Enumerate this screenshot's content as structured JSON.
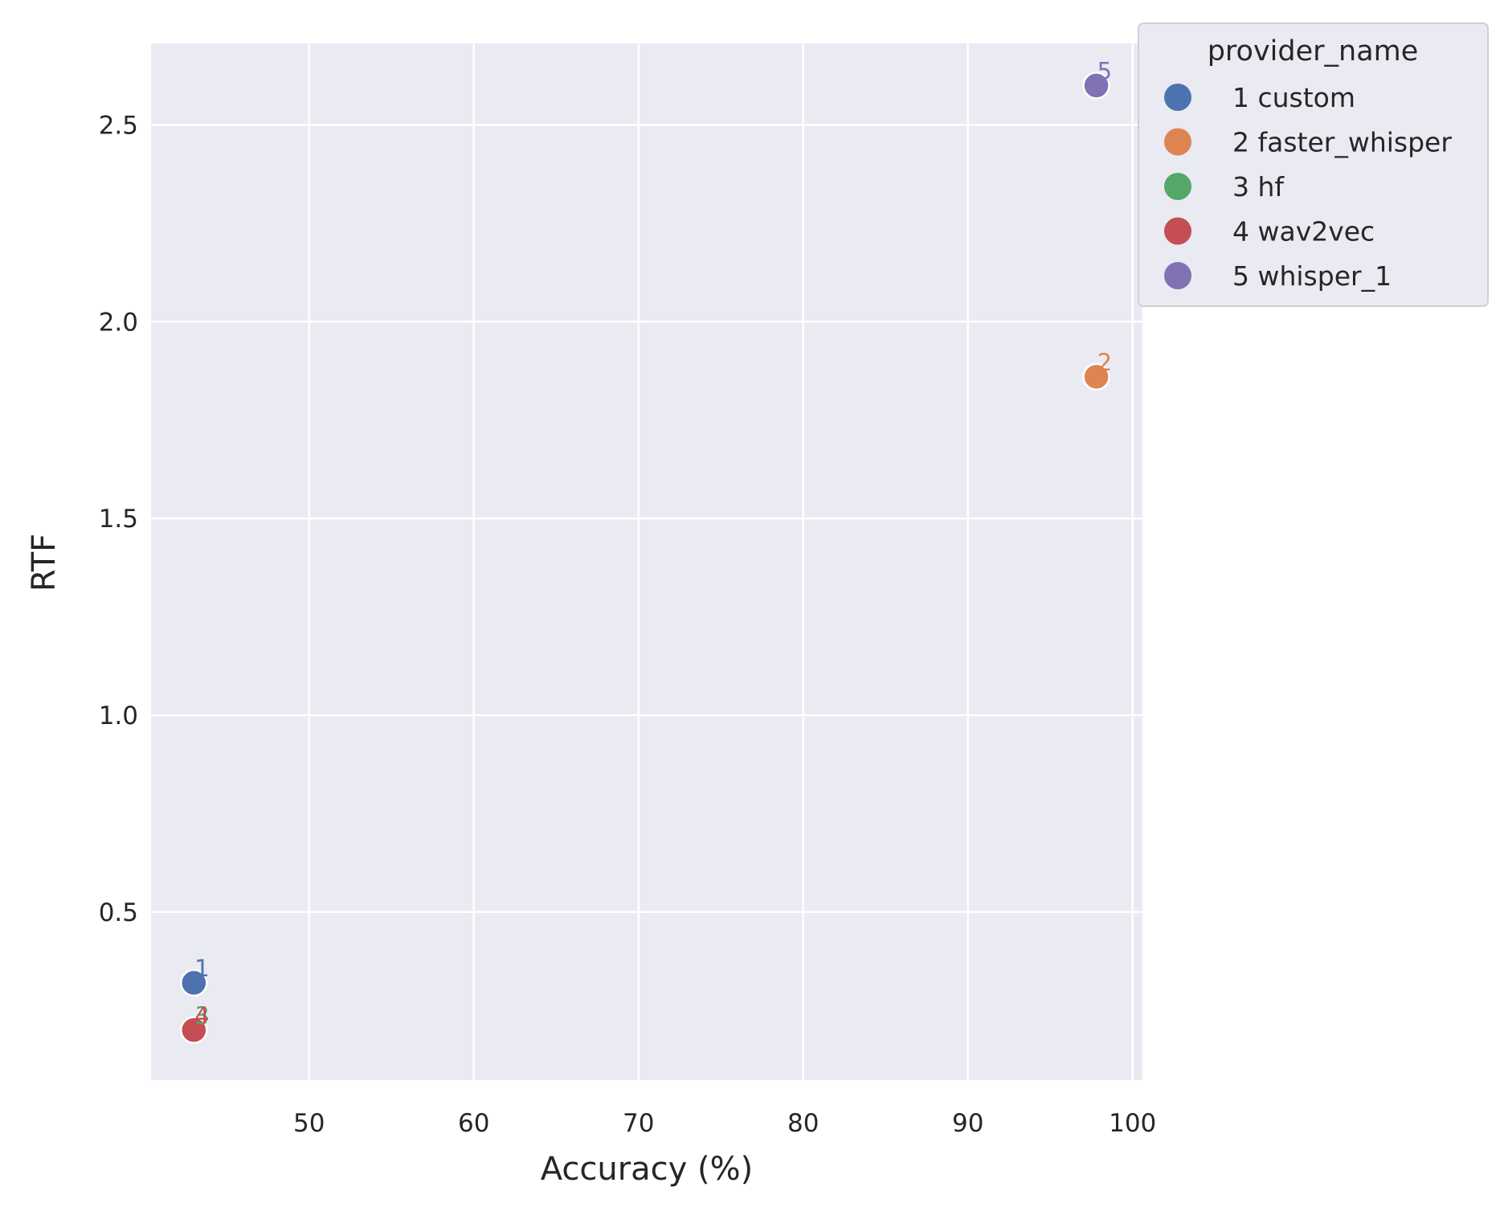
{
  "chart_data": {
    "type": "scatter",
    "title": "",
    "xlabel": "Accuracy (%)",
    "ylabel": "RTF",
    "xlim": [
      40.4,
      100.6
    ],
    "ylim": [
      0.073,
      2.707
    ],
    "xticks": [
      "50",
      "60",
      "70",
      "80",
      "90",
      "100"
    ],
    "yticks": [
      "0.5",
      "1.0",
      "1.5",
      "2.0",
      "2.5"
    ],
    "grid": true,
    "legend": {
      "title": "provider_name",
      "placement": "top-right, outside plot",
      "entries": [
        "1 custom",
        "2 faster_whisper",
        "3 hf",
        "4 wav2vec",
        "5 whisper_1"
      ]
    },
    "series": [
      {
        "name": "1 custom",
        "color": "#4c72b0",
        "points": [
          {
            "x": 43.0,
            "y": 0.32,
            "label": "1"
          }
        ]
      },
      {
        "name": "2 faster_whisper",
        "color": "#dd8452",
        "points": [
          {
            "x": 97.8,
            "y": 1.86,
            "label": "2"
          }
        ]
      },
      {
        "name": "3 hf",
        "color": "#55a868",
        "points": [
          {
            "x": 43.0,
            "y": 0.2,
            "label": "3"
          }
        ]
      },
      {
        "name": "4 wav2vec",
        "color": "#c44e52",
        "points": [
          {
            "x": 43.0,
            "y": 0.2,
            "label": "4"
          }
        ]
      },
      {
        "name": "5 whisper_1",
        "color": "#8172b3",
        "points": [
          {
            "x": 97.8,
            "y": 2.6,
            "label": "5"
          }
        ]
      }
    ],
    "style": {
      "background": "#eaeaf2",
      "grid_color": "#ffffff"
    }
  }
}
